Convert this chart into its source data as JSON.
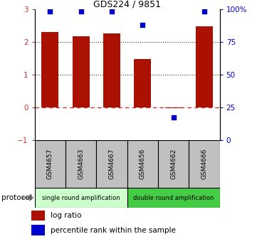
{
  "title": "GDS224 / 9851",
  "samples": [
    "GSM4657",
    "GSM4663",
    "GSM4667",
    "GSM4656",
    "GSM4662",
    "GSM4666"
  ],
  "log_ratio": [
    2.3,
    2.17,
    2.27,
    1.47,
    -0.03,
    2.48
  ],
  "percentile_rank": [
    98.5,
    98.5,
    98.5,
    88.0,
    17.0,
    98.5
  ],
  "bar_color": "#AA1100",
  "dot_color": "#0000CC",
  "ylim_left": [
    -1,
    3
  ],
  "ylim_right": [
    0,
    100
  ],
  "yticks_left": [
    -1,
    0,
    1,
    2,
    3
  ],
  "yticks_right": [
    0,
    25,
    50,
    75,
    100
  ],
  "yticklabels_right": [
    "0",
    "25",
    "50",
    "75",
    "100%"
  ],
  "hline0_color": "#CC3333",
  "hline12_color": "#333333",
  "group1_label": "single round amplification",
  "group2_label": "double round amplification",
  "group1_color": "#CCFFCC",
  "group2_color": "#44CC44",
  "sample_box_color": "#C0C0C0",
  "protocol_label": "protocol",
  "legend_bar_label": "log ratio",
  "legend_dot_label": "percentile rank within the sample",
  "fig_width": 3.61,
  "fig_height": 3.36,
  "dpi": 100
}
